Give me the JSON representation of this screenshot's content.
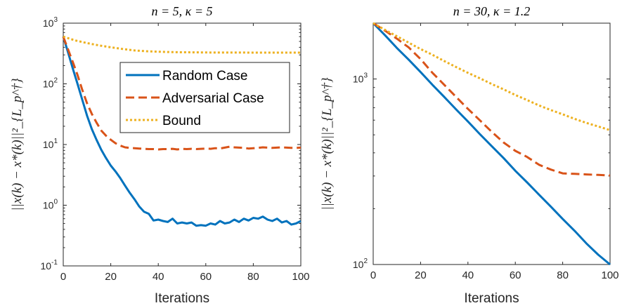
{
  "chart_data": [
    {
      "type": "line",
      "title": "n = 5, κ = 5",
      "xlabel": "Iterations",
      "ylabel": "||x(k) − x*(k)||²_{L_p^†}",
      "yscale": "log",
      "xlim": [
        0,
        100
      ],
      "ylim": [
        0.1,
        1000
      ],
      "xticks": [
        0,
        20,
        40,
        60,
        80,
        100
      ],
      "yticks": [
        {
          "value": 0.1,
          "base": "10",
          "exp": "-1"
        },
        {
          "value": 1,
          "base": "10",
          "exp": "0"
        },
        {
          "value": 10,
          "base": "10",
          "exp": "1"
        },
        {
          "value": 100,
          "base": "10",
          "exp": "2"
        },
        {
          "value": 1000,
          "base": "10",
          "exp": "3"
        }
      ],
      "grid": false,
      "legend_position": "upper-right",
      "series": [
        {
          "name": "Random Case",
          "color": "#0072BD",
          "style": "solid",
          "x": [
            0,
            2,
            4,
            6,
            8,
            10,
            12,
            14,
            16,
            18,
            20,
            22,
            24,
            26,
            28,
            30,
            32,
            34,
            36,
            38,
            40,
            42,
            44,
            46,
            48,
            50,
            52,
            54,
            56,
            58,
            60,
            62,
            64,
            66,
            68,
            70,
            72,
            74,
            76,
            78,
            80,
            82,
            84,
            86,
            88,
            90,
            92,
            94,
            96,
            98,
            100
          ],
          "y": [
            600,
            330,
            180,
            100,
            55,
            30,
            18,
            12,
            8.2,
            6.0,
            4.5,
            3.6,
            2.8,
            2.1,
            1.6,
            1.25,
            0.95,
            0.78,
            0.72,
            0.56,
            0.58,
            0.55,
            0.53,
            0.6,
            0.5,
            0.52,
            0.5,
            0.52,
            0.46,
            0.47,
            0.46,
            0.5,
            0.48,
            0.55,
            0.5,
            0.52,
            0.58,
            0.53,
            0.6,
            0.56,
            0.62,
            0.6,
            0.65,
            0.58,
            0.55,
            0.6,
            0.52,
            0.55,
            0.48,
            0.5,
            0.55
          ]
        },
        {
          "name": "Adversarial Case",
          "color": "#D95319",
          "style": "dashed",
          "x": [
            0,
            2,
            4,
            6,
            8,
            10,
            12,
            14,
            16,
            18,
            20,
            22,
            24,
            26,
            28,
            30,
            32,
            34,
            36,
            38,
            40,
            42,
            44,
            46,
            48,
            50,
            52,
            54,
            56,
            58,
            60,
            62,
            64,
            66,
            68,
            70,
            72,
            74,
            76,
            78,
            80,
            82,
            84,
            86,
            88,
            90,
            92,
            94,
            96,
            98,
            100
          ],
          "y": [
            600,
            370,
            230,
            140,
            80,
            48,
            32,
            23,
            17,
            14,
            12,
            10.5,
            9.6,
            9.0,
            8.8,
            8.7,
            8.6,
            8.5,
            8.4,
            8.4,
            8.3,
            8.4,
            8.4,
            8.5,
            8.3,
            8.5,
            8.4,
            8.5,
            8.4,
            8.5,
            8.6,
            8.5,
            8.7,
            8.6,
            8.9,
            9.2,
            9.0,
            8.9,
            8.8,
            8.6,
            8.7,
            8.8,
            9.0,
            8.9,
            8.8,
            8.9,
            9.0,
            8.9,
            8.8,
            8.8,
            8.9
          ]
        },
        {
          "name": "Bound",
          "color": "#EDB120",
          "style": "dotted",
          "x": [
            0,
            5,
            10,
            15,
            20,
            25,
            30,
            35,
            40,
            45,
            50,
            55,
            60,
            65,
            70,
            75,
            80,
            85,
            90,
            95,
            100
          ],
          "y": [
            600,
            520,
            470,
            430,
            400,
            375,
            355,
            345,
            338,
            334,
            331,
            330,
            329,
            328,
            328,
            328,
            327,
            327,
            327,
            327,
            327
          ]
        }
      ]
    },
    {
      "type": "line",
      "title": "n = 30, κ = 1.2",
      "xlabel": "Iterations",
      "ylabel": "||x(k) − x*(k)||²_{L_p^†}",
      "yscale": "log",
      "xlim": [
        0,
        100
      ],
      "ylim": [
        100,
        2000
      ],
      "xticks": [
        0,
        20,
        40,
        60,
        80,
        100
      ],
      "yticks": [
        {
          "value": 100,
          "base": "10",
          "exp": "2"
        },
        {
          "value": 1000,
          "base": "10",
          "exp": "3"
        }
      ],
      "grid": false,
      "series": [
        {
          "name": "Random Case",
          "color": "#0072BD",
          "style": "solid",
          "x": [
            0,
            5,
            10,
            15,
            20,
            25,
            30,
            35,
            40,
            45,
            50,
            55,
            60,
            65,
            70,
            75,
            80,
            85,
            90,
            95,
            100
          ],
          "y": [
            2000,
            1720,
            1470,
            1270,
            1090,
            930,
            800,
            685,
            590,
            505,
            435,
            375,
            320,
            277,
            238,
            205,
            176,
            152,
            130,
            113,
            100
          ]
        },
        {
          "name": "Adversarial Case",
          "color": "#D95319",
          "style": "dashed",
          "x": [
            0,
            5,
            10,
            15,
            20,
            25,
            30,
            35,
            40,
            45,
            50,
            55,
            60,
            65,
            70,
            75,
            80,
            85,
            90,
            95,
            100
          ],
          "y": [
            2000,
            1820,
            1650,
            1480,
            1280,
            1080,
            930,
            800,
            690,
            600,
            520,
            455,
            410,
            380,
            345,
            325,
            310,
            308,
            306,
            304,
            302
          ]
        },
        {
          "name": "Bound",
          "color": "#EDB120",
          "style": "dotted",
          "x": [
            0,
            5,
            10,
            15,
            20,
            25,
            30,
            35,
            40,
            45,
            50,
            55,
            60,
            65,
            70,
            75,
            80,
            85,
            90,
            95,
            100
          ],
          "y": [
            2000,
            1840,
            1700,
            1570,
            1450,
            1350,
            1250,
            1160,
            1080,
            1010,
            940,
            880,
            820,
            770,
            720,
            680,
            645,
            610,
            580,
            555,
            530
          ]
        }
      ]
    }
  ]
}
